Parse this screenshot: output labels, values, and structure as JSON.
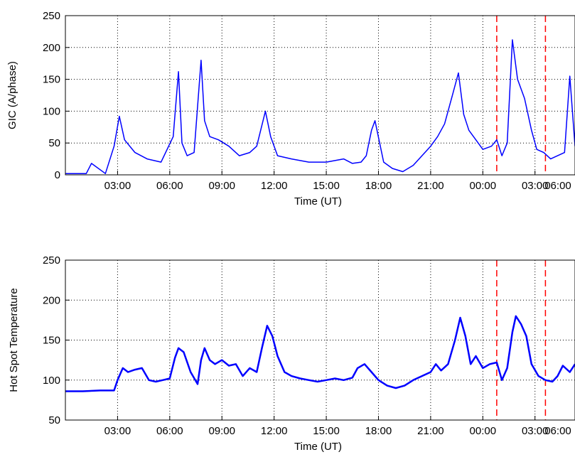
{
  "chart_data": [
    {
      "type": "line",
      "title": "",
      "xlabel": "Time (UT)",
      "ylabel": "GIC (A/phase)",
      "x_unit": "hours",
      "xlim": [
        0,
        29.3
      ],
      "ylim": [
        0,
        250
      ],
      "yticks": [
        0,
        50,
        100,
        150,
        200,
        250
      ],
      "xticks": [
        {
          "x": 3,
          "label": "03:00"
        },
        {
          "x": 6,
          "label": "06:00"
        },
        {
          "x": 9,
          "label": "09:00"
        },
        {
          "x": 12,
          "label": "12:00"
        },
        {
          "x": 15,
          "label": "15:00"
        },
        {
          "x": 18,
          "label": "18:00"
        },
        {
          "x": 21,
          "label": "21:00"
        },
        {
          "x": 24,
          "label": "00:00"
        },
        {
          "x": 27,
          "label": "03:00"
        },
        {
          "x": 30,
          "label": "06:00"
        }
      ],
      "grid": true,
      "line_color": "#0000ff",
      "marker_color": "#ff0000",
      "vertical_markers": [
        24.8,
        27.6
      ],
      "series": [
        {
          "x": [
            0,
            1.2,
            1.5,
            2.3,
            2.8,
            3.1,
            3.4,
            4.0,
            4.7,
            5.5,
            6.2,
            6.5,
            6.7,
            7.0,
            7.4,
            7.8,
            8.0,
            8.3,
            8.8,
            9.4,
            10.0,
            10.6,
            11.0,
            11.5,
            11.8,
            12.2,
            13.0,
            14.0,
            15.0,
            16.0,
            16.5,
            17.0,
            17.3,
            17.6,
            17.8,
            18.3,
            18.8,
            19.4,
            20.0,
            20.5,
            21.0,
            21.4,
            21.8,
            22.2,
            22.6,
            22.9,
            23.2,
            23.6,
            24.0,
            24.5,
            24.8,
            25.1,
            25.4,
            25.7,
            26.0,
            26.4,
            26.8,
            27.1,
            27.5,
            27.9,
            28.3,
            28.7,
            29.0,
            29.3
          ],
          "y": [
            2,
            2,
            18,
            2,
            45,
            92,
            55,
            35,
            25,
            20,
            60,
            162,
            50,
            30,
            35,
            180,
            85,
            60,
            55,
            45,
            30,
            35,
            45,
            100,
            60,
            30,
            25,
            20,
            20,
            25,
            18,
            20,
            30,
            70,
            85,
            20,
            10,
            5,
            15,
            30,
            45,
            60,
            80,
            120,
            160,
            95,
            70,
            55,
            40,
            45,
            55,
            30,
            50,
            212,
            150,
            120,
            70,
            40,
            35,
            25,
            30,
            35,
            155,
            45
          ]
        }
      ]
    },
    {
      "type": "line",
      "title": "",
      "xlabel": "Time (UT)",
      "ylabel": "Hot Spot Temperature",
      "x_unit": "hours",
      "xlim": [
        0,
        29.3
      ],
      "ylim": [
        50,
        250
      ],
      "yticks": [
        50,
        100,
        150,
        200,
        250
      ],
      "xticks": [
        {
          "x": 3,
          "label": "03:00"
        },
        {
          "x": 6,
          "label": "06:00"
        },
        {
          "x": 9,
          "label": "09:00"
        },
        {
          "x": 12,
          "label": "12:00"
        },
        {
          "x": 15,
          "label": "15:00"
        },
        {
          "x": 18,
          "label": "18:00"
        },
        {
          "x": 21,
          "label": "21:00"
        },
        {
          "x": 24,
          "label": "00:00"
        },
        {
          "x": 27,
          "label": "03:00"
        },
        {
          "x": 30,
          "label": "06:00"
        }
      ],
      "grid": true,
      "line_color": "#0000ff",
      "marker_color": "#ff0000",
      "vertical_markers": [
        24.8,
        27.6
      ],
      "series": [
        {
          "x": [
            0,
            1.0,
            2.0,
            2.8,
            3.0,
            3.3,
            3.6,
            4.0,
            4.4,
            4.8,
            5.2,
            5.6,
            6.0,
            6.3,
            6.5,
            6.8,
            7.2,
            7.6,
            7.8,
            8.0,
            8.3,
            8.6,
            9.0,
            9.4,
            9.8,
            10.2,
            10.6,
            11.0,
            11.3,
            11.6,
            11.9,
            12.2,
            12.6,
            13.0,
            13.5,
            14.0,
            14.5,
            15.0,
            15.5,
            16.0,
            16.5,
            16.8,
            17.2,
            17.6,
            18.0,
            18.5,
            19.0,
            19.5,
            20.0,
            20.5,
            21.0,
            21.3,
            21.6,
            22.0,
            22.4,
            22.7,
            23.0,
            23.3,
            23.6,
            24.0,
            24.4,
            24.8,
            25.1,
            25.4,
            25.7,
            25.9,
            26.2,
            26.5,
            26.8,
            27.2,
            27.6,
            28.0,
            28.3,
            28.6,
            29.0,
            29.3
          ],
          "y": [
            86,
            86,
            87,
            87,
            100,
            115,
            110,
            113,
            115,
            100,
            98,
            100,
            102,
            128,
            140,
            135,
            110,
            95,
            125,
            140,
            125,
            120,
            125,
            118,
            120,
            105,
            115,
            110,
            140,
            168,
            155,
            130,
            110,
            105,
            102,
            100,
            98,
            100,
            102,
            100,
            103,
            115,
            120,
            110,
            100,
            93,
            90,
            93,
            100,
            105,
            110,
            120,
            112,
            120,
            150,
            178,
            155,
            120,
            130,
            115,
            120,
            122,
            100,
            115,
            160,
            180,
            170,
            155,
            120,
            105,
            100,
            98,
            105,
            118,
            110,
            120
          ]
        }
      ]
    }
  ]
}
